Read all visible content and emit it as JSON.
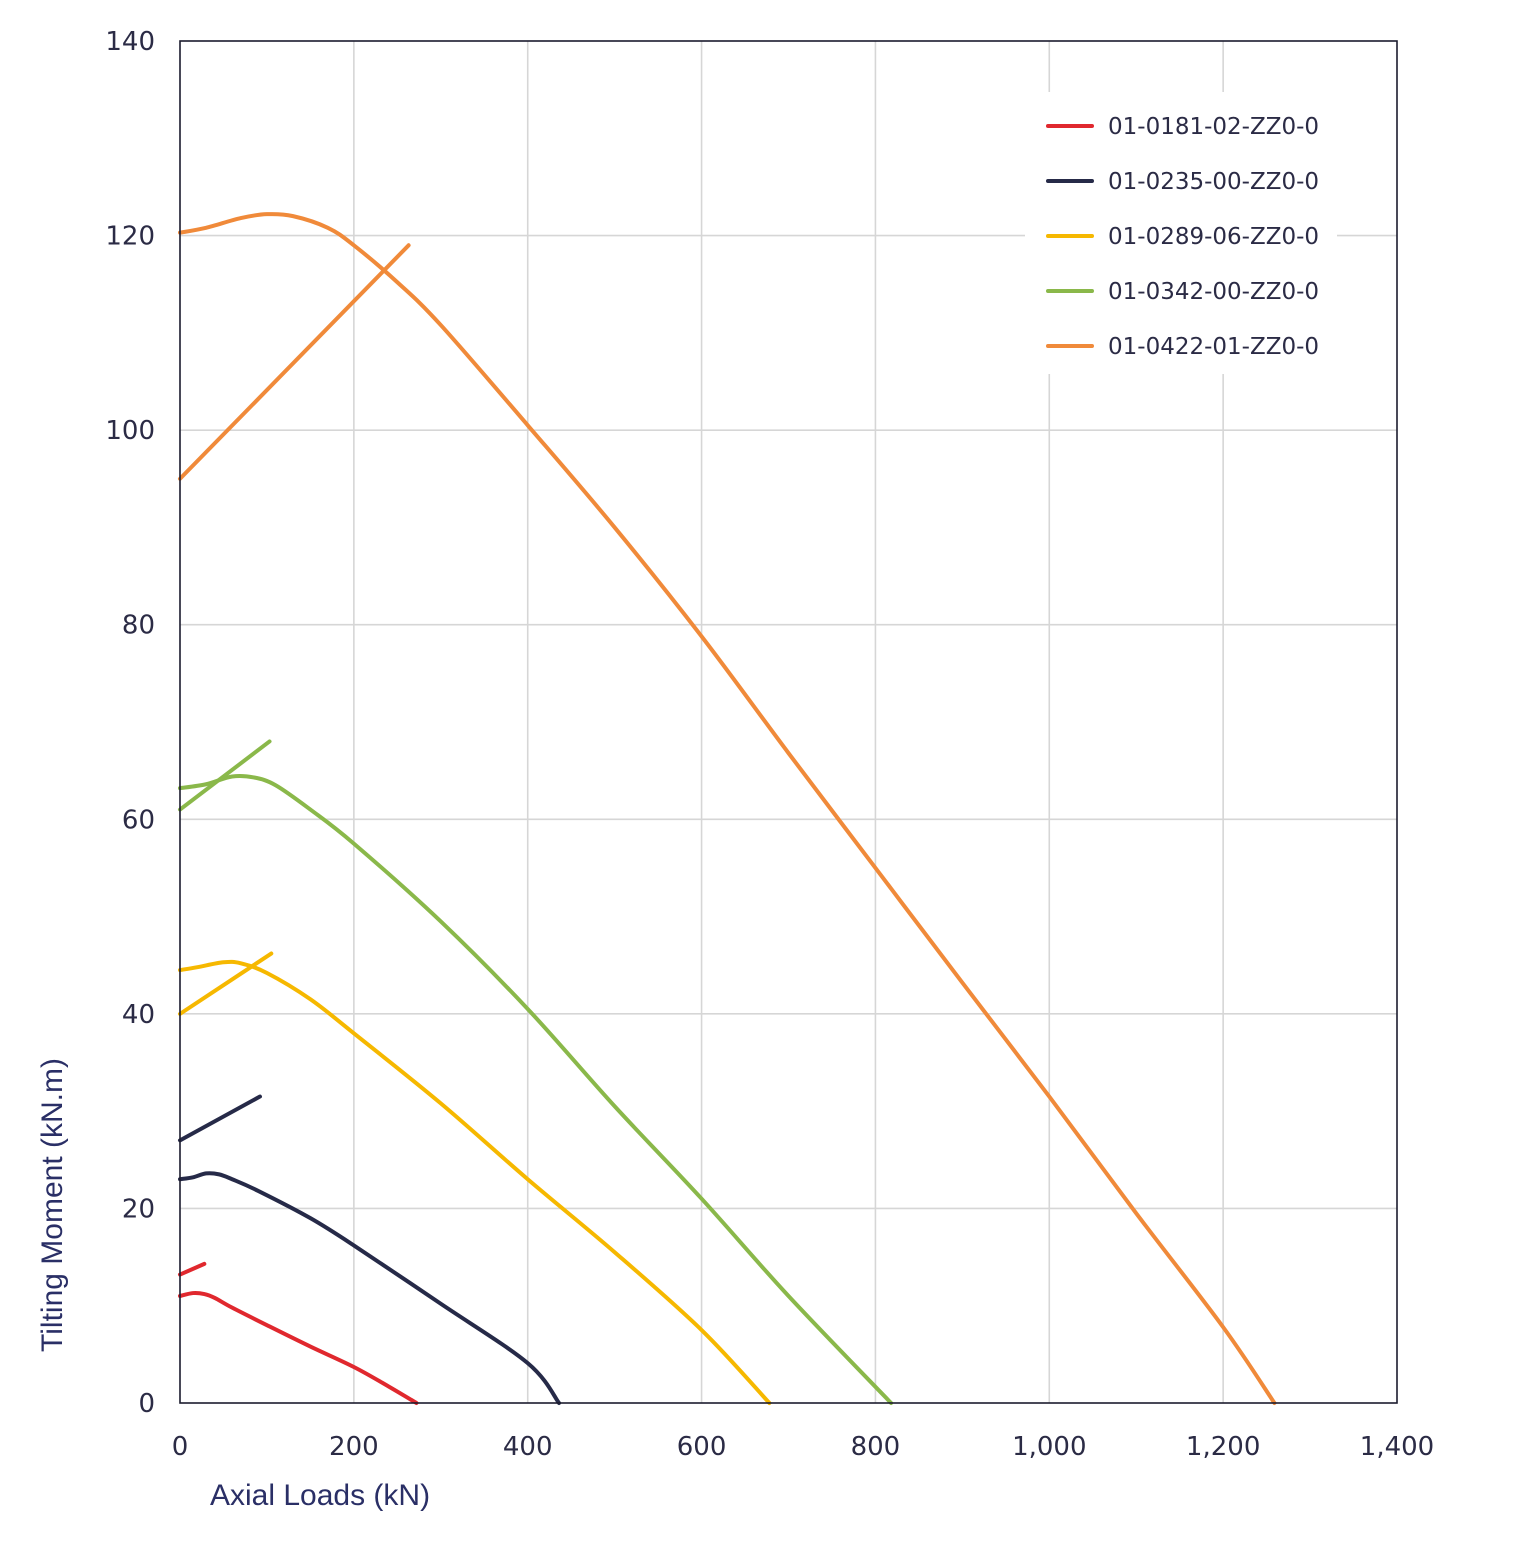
{
  "chart_data": {
    "type": "line",
    "title": "",
    "xlabel": "Axial Loads (kN)",
    "ylabel": "Tilting Moment (kN.m)",
    "xlim": [
      0,
      1400
    ],
    "ylim": [
      0,
      140
    ],
    "xticks": [
      0,
      200,
      400,
      600,
      800,
      1000,
      1200,
      1400
    ],
    "xtick_labels": [
      "0",
      "200",
      "400",
      "600",
      "800",
      "1,000",
      "1,200",
      "1,400"
    ],
    "yticks": [
      0,
      20,
      40,
      60,
      80,
      100,
      120,
      140
    ],
    "ytick_labels": [
      "0",
      "20",
      "40",
      "60",
      "80",
      "100",
      "120",
      "140"
    ],
    "grid": true,
    "legend_position": "top-right",
    "series": [
      {
        "name": "01-0181-02-ZZ0-0",
        "color": "#e0282e",
        "curve": [
          [
            0,
            11.0
          ],
          [
            15,
            11.3
          ],
          [
            28,
            11.2
          ],
          [
            40,
            10.8
          ],
          [
            60,
            9.8
          ],
          [
            100,
            8.0
          ],
          [
            150,
            5.8
          ],
          [
            200,
            3.7
          ],
          [
            240,
            1.7
          ],
          [
            272,
            0
          ]
        ],
        "line": [
          [
            0,
            13.2
          ],
          [
            28,
            14.3
          ]
        ]
      },
      {
        "name": "01-0235-00-ZZ0-0",
        "color": "#262a48",
        "curve": [
          [
            0,
            23.0
          ],
          [
            15,
            23.2
          ],
          [
            30,
            23.6
          ],
          [
            45,
            23.5
          ],
          [
            60,
            23.0
          ],
          [
            90,
            21.8
          ],
          [
            150,
            19.0
          ],
          [
            200,
            16.2
          ],
          [
            300,
            10.2
          ],
          [
            400,
            4.1
          ],
          [
            436,
            0
          ]
        ],
        "line": [
          [
            0,
            27.0
          ],
          [
            92,
            31.5
          ]
        ]
      },
      {
        "name": "01-0289-06-ZZ0-0",
        "color": "#f6b800",
        "curve": [
          [
            0,
            44.5
          ],
          [
            20,
            44.8
          ],
          [
            50,
            45.3
          ],
          [
            70,
            45.2
          ],
          [
            100,
            44.2
          ],
          [
            150,
            41.5
          ],
          [
            200,
            38.0
          ],
          [
            300,
            30.8
          ],
          [
            400,
            23.0
          ],
          [
            500,
            15.5
          ],
          [
            600,
            7.5
          ],
          [
            678,
            0
          ]
        ],
        "line": [
          [
            0,
            40.0
          ],
          [
            105,
            46.2
          ]
        ]
      },
      {
        "name": "01-0342-00-ZZ0-0",
        "color": "#8ab84a",
        "curve": [
          [
            0,
            63.2
          ],
          [
            30,
            63.6
          ],
          [
            60,
            64.4
          ],
          [
            85,
            64.3
          ],
          [
            110,
            63.5
          ],
          [
            150,
            61.0
          ],
          [
            200,
            57.5
          ],
          [
            300,
            49.5
          ],
          [
            400,
            40.5
          ],
          [
            500,
            30.5
          ],
          [
            600,
            21.0
          ],
          [
            700,
            11.0
          ],
          [
            818,
            0
          ]
        ],
        "line": [
          [
            0,
            61.0
          ],
          [
            103,
            68.0
          ]
        ]
      },
      {
        "name": "01-0422-01-ZZ0-0",
        "color": "#f08a3a",
        "curve": [
          [
            0,
            120.3
          ],
          [
            30,
            120.8
          ],
          [
            70,
            121.8
          ],
          [
            100,
            122.2
          ],
          [
            130,
            122.0
          ],
          [
            170,
            120.8
          ],
          [
            200,
            119.0
          ],
          [
            250,
            115.2
          ],
          [
            300,
            110.8
          ],
          [
            400,
            100.5
          ],
          [
            500,
            90.0
          ],
          [
            600,
            78.8
          ],
          [
            700,
            66.8
          ],
          [
            800,
            55.0
          ],
          [
            900,
            43.2
          ],
          [
            1000,
            31.5
          ],
          [
            1100,
            19.5
          ],
          [
            1200,
            7.8
          ],
          [
            1259,
            0
          ]
        ],
        "line": [
          [
            0,
            95.0
          ],
          [
            263,
            119.0
          ]
        ]
      }
    ]
  }
}
